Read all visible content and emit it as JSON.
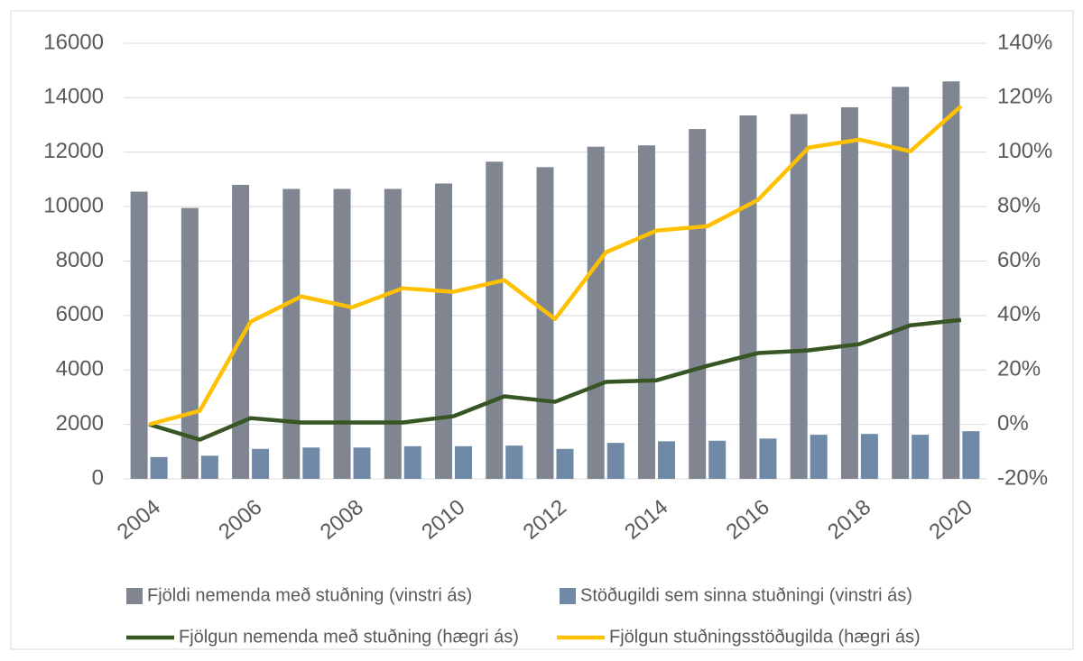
{
  "chart_data": {
    "type": "combo",
    "categories": [
      2004,
      null,
      2006,
      null,
      2008,
      null,
      2010,
      null,
      2012,
      null,
      2014,
      null,
      2016,
      null,
      2018,
      null,
      2020
    ],
    "series": [
      {
        "name": "Fjöldi nemenda með stuðning (vinstri ás)",
        "type": "bar",
        "color": "#7f8691",
        "values": [
          10550,
          9950,
          10800,
          10650,
          10650,
          10650,
          10850,
          11650,
          11450,
          12200,
          12250,
          12850,
          13350,
          13400,
          13650,
          14400,
          14600
        ]
      },
      {
        "name": "Stöðugildi sem sinna stuðningi (vinstri ás)",
        "type": "bar",
        "color": "#6f89a6",
        "values": [
          800,
          850,
          1100,
          1150,
          1150,
          1200,
          1200,
          1220,
          1100,
          1320,
          1380,
          1400,
          1480,
          1620,
          1650,
          1620,
          1750
        ]
      },
      {
        "name": "Fjölgun nemenda með stuðning (hægri ás)",
        "type": "line",
        "axis": "y2",
        "color": "#375623",
        "values": [
          0,
          -5.6,
          2.3,
          0.7,
          0.7,
          0.7,
          3,
          10.3,
          8.3,
          15.6,
          16.2,
          21.5,
          26.2,
          27.2,
          29.5,
          36.4,
          38.4
        ]
      },
      {
        "name": "Fjölgun stuðningsstöðugilda (hægri ás)",
        "type": "line",
        "axis": "y2",
        "color": "#ffc000",
        "values": [
          0,
          5,
          37.7,
          47,
          43,
          50,
          48.7,
          53,
          38.7,
          63.2,
          71.2,
          72.8,
          82.5,
          101.7,
          104.6,
          100.3,
          116.9
        ]
      }
    ],
    "ylim": [
      0,
      16000
    ],
    "yticks": [
      0,
      2000,
      4000,
      6000,
      8000,
      10000,
      12000,
      14000,
      16000
    ],
    "y2lim": [
      -20,
      140
    ],
    "y2ticks": [
      {
        "value": -20,
        "label": "-20%"
      },
      {
        "value": 0,
        "label": "0%"
      },
      {
        "value": 20,
        "label": "20%"
      },
      {
        "value": 40,
        "label": "40%"
      },
      {
        "value": 60,
        "label": "60%"
      },
      {
        "value": 80,
        "label": "80%"
      },
      {
        "value": 100,
        "label": "100%"
      },
      {
        "value": 120,
        "label": "120%"
      },
      {
        "value": 140,
        "label": "140%"
      }
    ],
    "grid": true,
    "legend": "bottom"
  }
}
